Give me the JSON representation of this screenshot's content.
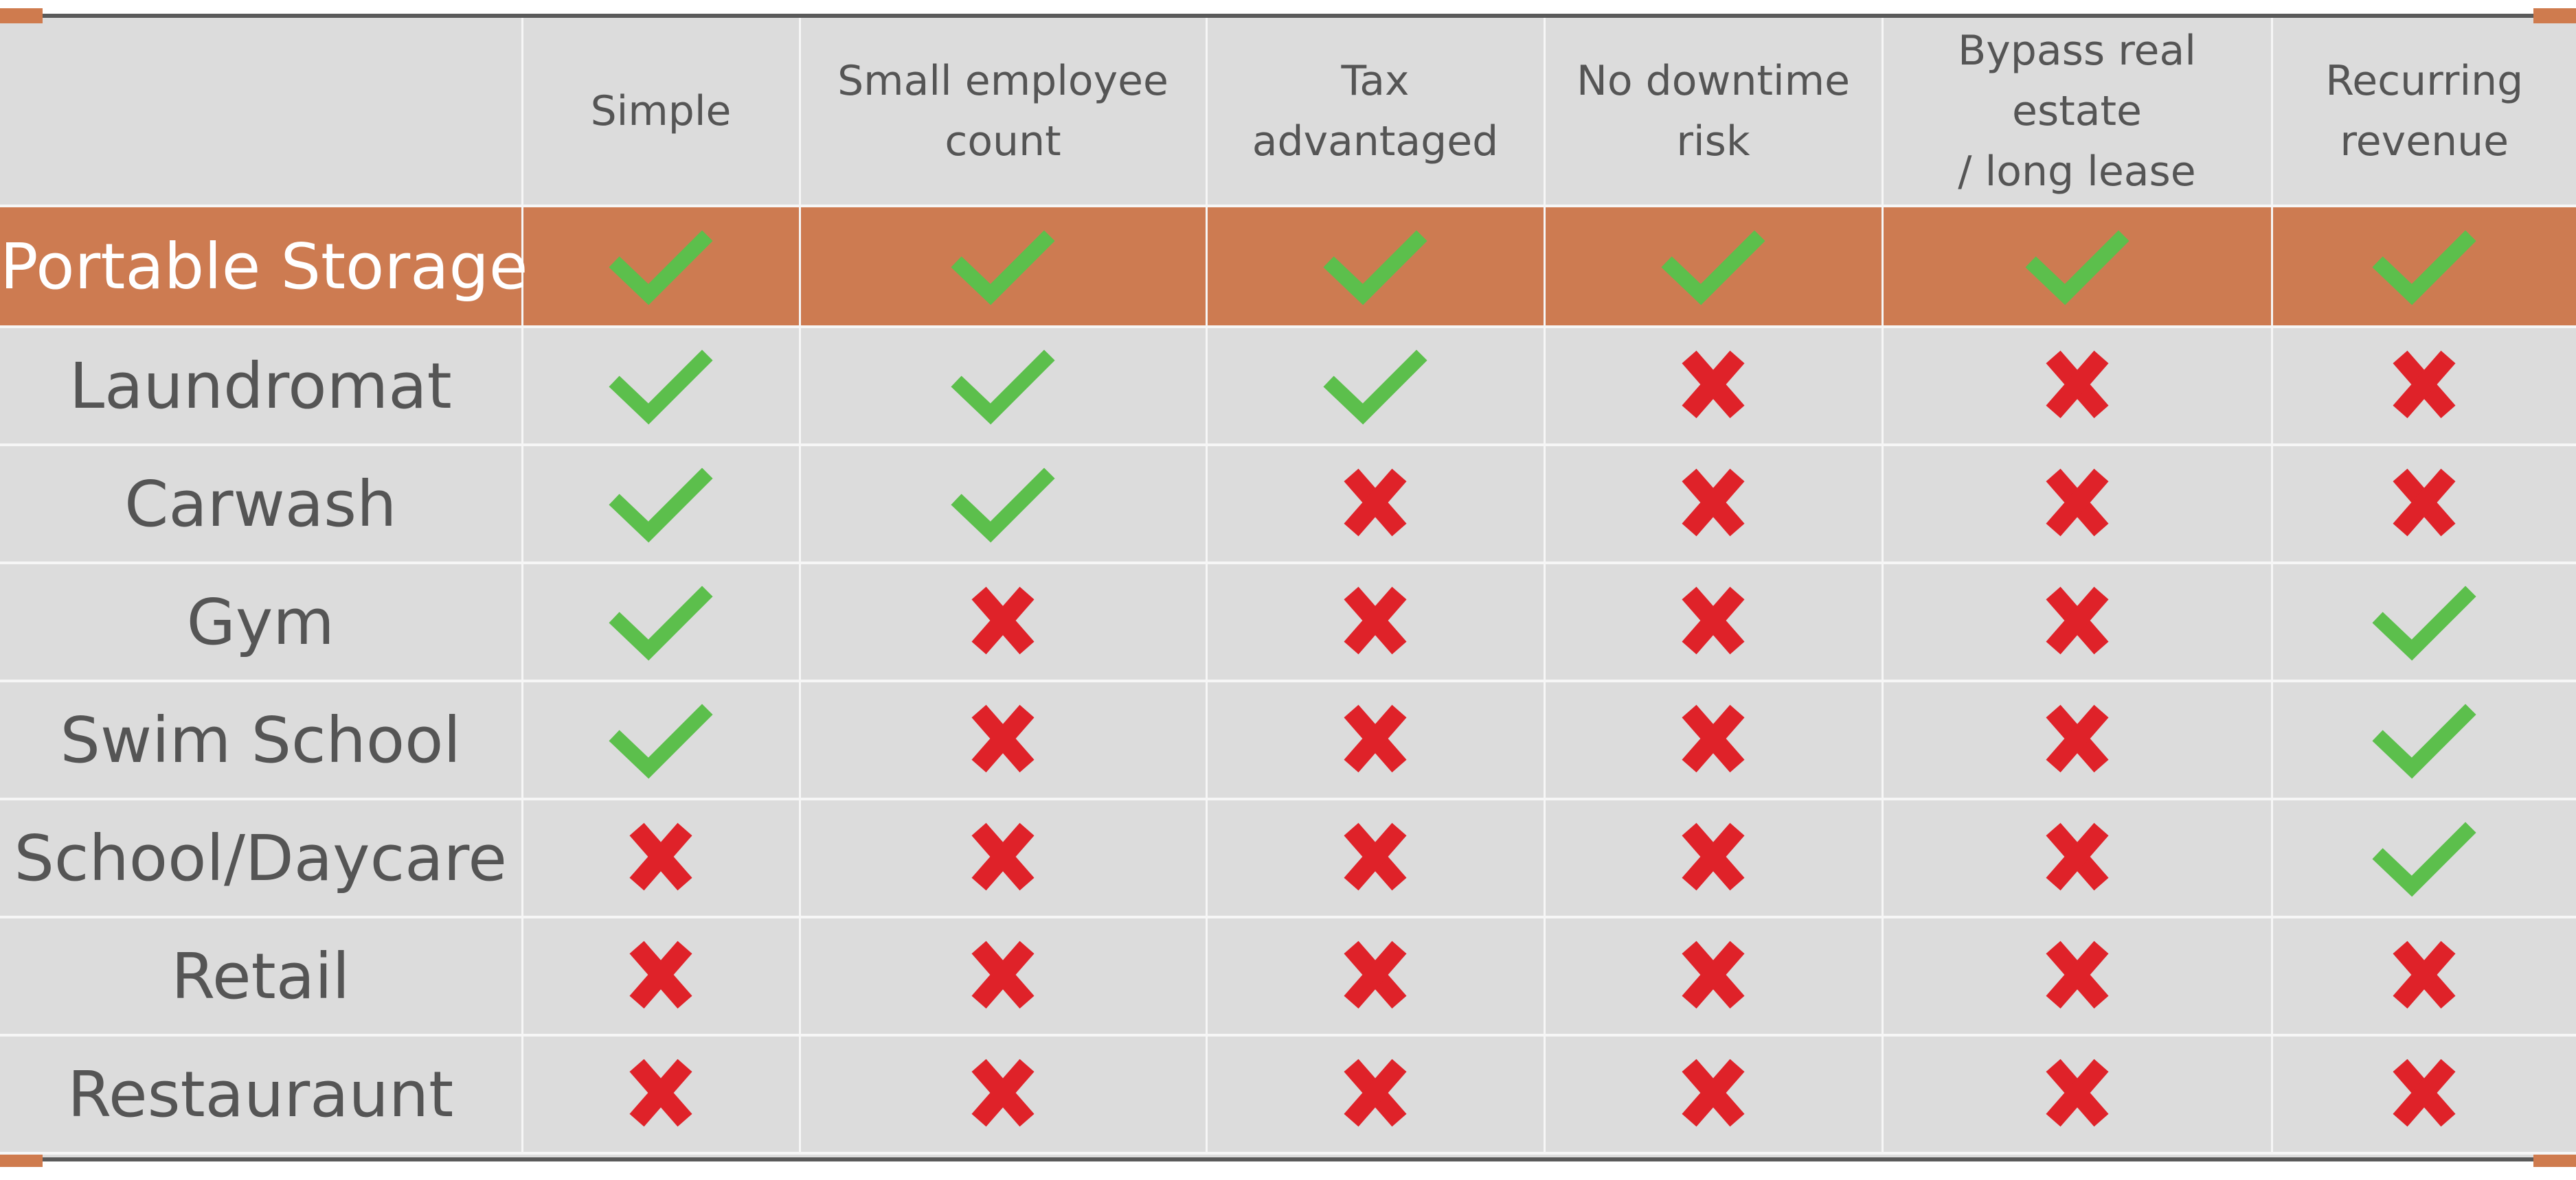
{
  "table": {
    "columns": [
      "Simple",
      "Small employee count",
      "Tax advantaged",
      "No downtime risk",
      "Bypass real estate / long lease",
      "Recurring revenue"
    ],
    "column_lines": [
      [
        "Simple"
      ],
      [
        "Small employee",
        "count"
      ],
      [
        "Tax",
        "advantaged"
      ],
      [
        "No downtime",
        "risk"
      ],
      [
        "Bypass real estate",
        "/ long lease"
      ],
      [
        "Recurring",
        "revenue"
      ]
    ],
    "rows": [
      {
        "label": "Portable Storage",
        "featured": true,
        "values": [
          "check",
          "check",
          "check",
          "check",
          "check",
          "check"
        ]
      },
      {
        "label": "Laundromat",
        "featured": false,
        "values": [
          "check",
          "check",
          "check",
          "cross",
          "cross",
          "cross"
        ]
      },
      {
        "label": "Carwash",
        "featured": false,
        "values": [
          "check",
          "check",
          "cross",
          "cross",
          "cross",
          "cross"
        ]
      },
      {
        "label": "Gym",
        "featured": false,
        "values": [
          "check",
          "cross",
          "cross",
          "cross",
          "cross",
          "check"
        ]
      },
      {
        "label": "Swim School",
        "featured": false,
        "values": [
          "check",
          "cross",
          "cross",
          "cross",
          "cross",
          "check"
        ]
      },
      {
        "label": "School/Daycare",
        "featured": false,
        "values": [
          "cross",
          "cross",
          "cross",
          "cross",
          "cross",
          "check"
        ]
      },
      {
        "label": "Retail",
        "featured": false,
        "values": [
          "cross",
          "cross",
          "cross",
          "cross",
          "cross",
          "cross"
        ]
      },
      {
        "label": "Restauraunt",
        "featured": false,
        "values": [
          "cross",
          "cross",
          "cross",
          "cross",
          "cross",
          "cross"
        ]
      }
    ]
  },
  "icons": {
    "check": "check-mark-icon",
    "cross": "cross-mark-icon"
  },
  "colors": {
    "background": "#dcdcdc",
    "featured_row": "#cd7b51",
    "check": "#5cbf4c",
    "cross": "#df2229",
    "text": "#555555",
    "featured_text": "#ffffff",
    "rule": "#5a5a5a",
    "corner_tab": "#cf7b4e"
  }
}
